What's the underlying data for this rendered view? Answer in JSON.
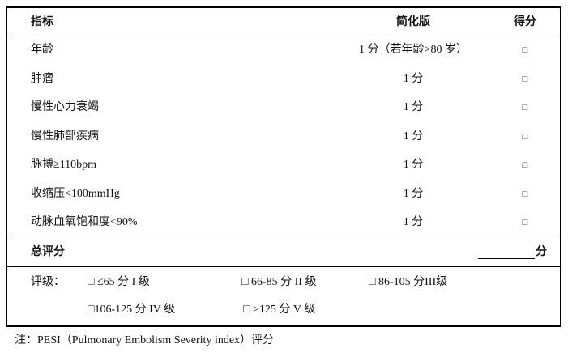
{
  "table": {
    "header": [
      "指标",
      "简化版",
      "得分"
    ],
    "rows": [
      [
        "年龄",
        "1 分（若年龄>80 岁）",
        "□"
      ],
      [
        "肿瘤",
        "1 分",
        "□"
      ],
      [
        "慢性心力衰竭",
        "1 分",
        "□"
      ],
      [
        "慢性肺部疾病",
        "1 分",
        "□"
      ],
      [
        "脉搏≥110bpm",
        "1 分",
        "□"
      ],
      [
        "收缩压<100mmHg",
        "1 分",
        "□"
      ],
      [
        "动脉血氧饱和度<90%",
        "1 分",
        "□"
      ]
    ],
    "total": {
      "label": "总评分",
      "unit": "分"
    },
    "rating": {
      "label": "评级：",
      "items": [
        "□ ≤65 分  I 级",
        "□ 66-85 分 II 级",
        "□ 86-105 分III级",
        "□106-125 分  IV 级",
        "□ >125 分   V 级"
      ]
    }
  },
  "note": "注：PESI（Pulmonary Embolism Severity index）评分"
}
